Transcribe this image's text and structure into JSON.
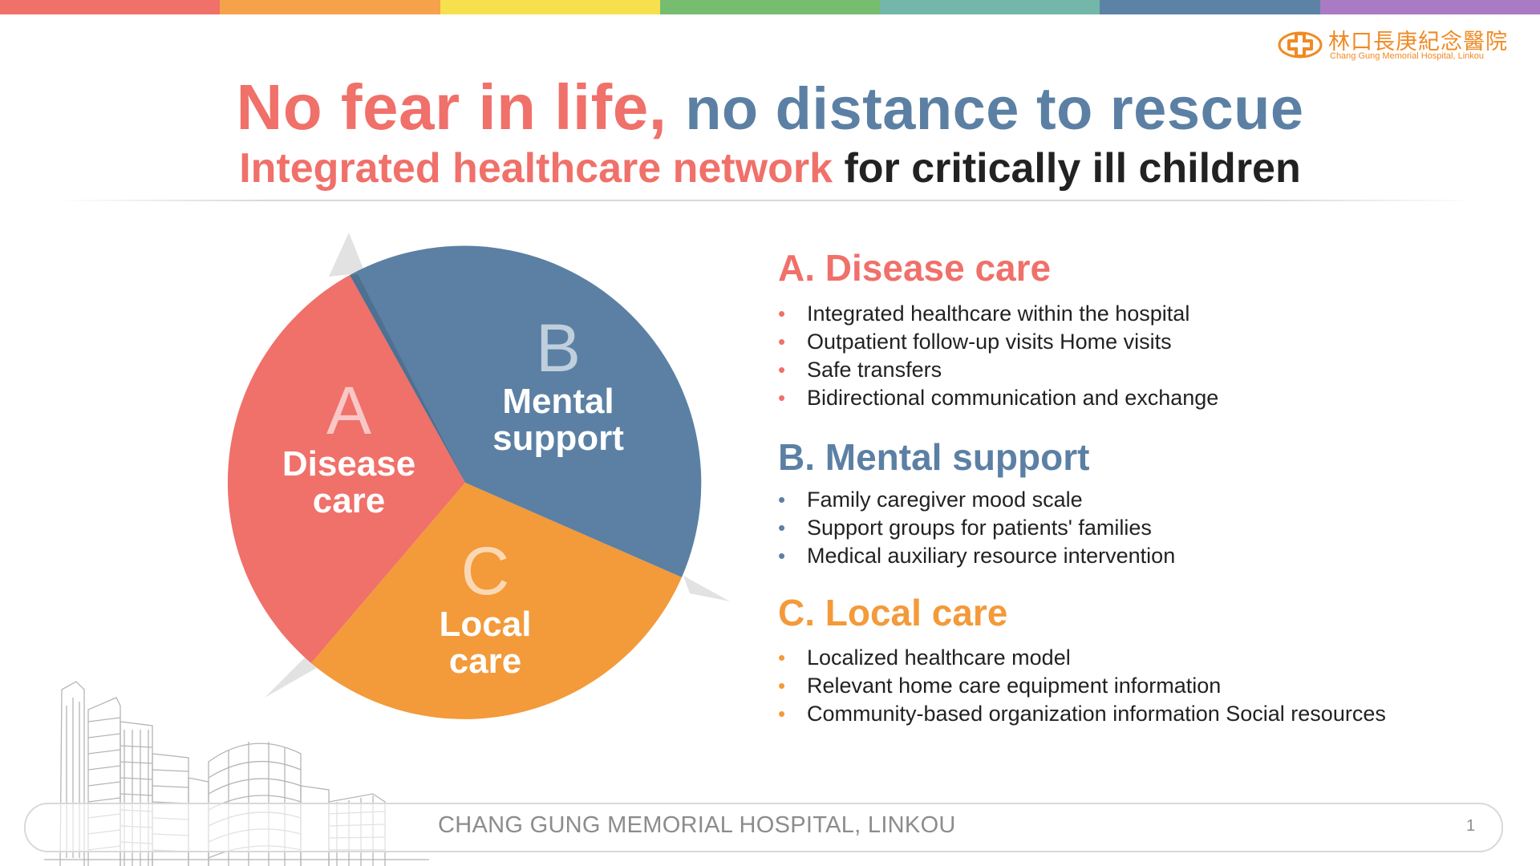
{
  "colors": {
    "topbar": [
      "#f0706a",
      "#f6a24a",
      "#f7e04e",
      "#76bd6f",
      "#73b7aa",
      "#5c83a6",
      "#a87bc4"
    ],
    "red": "#f0706a",
    "blue": "#5b80a4",
    "orange": "#f39a3a",
    "dark": "#222222"
  },
  "logo": {
    "chinese": "林口長庚紀念醫院",
    "english": "Chang Gung Memorial Hospital, Linkou",
    "icon": "hospital-cross-logo-icon"
  },
  "title": {
    "line1_part1": "No fear in life,",
    "line1_part2": "no distance to rescue",
    "line2_part1": "Integrated healthcare network",
    "line2_part2": "for critically ill children"
  },
  "pie": {
    "segments": [
      {
        "letter": "A",
        "label_line1": "Disease",
        "label_line2": "care",
        "color": "#f0706a"
      },
      {
        "letter": "B",
        "label_line1": "Mental",
        "label_line2": "support",
        "color": "#5b80a4"
      },
      {
        "letter": "C",
        "label_line1": "Local",
        "label_line2": "care",
        "color": "#f39a3a"
      }
    ]
  },
  "sections": [
    {
      "heading": "A. Disease care",
      "color": "#f0706a",
      "items": [
        "Integrated healthcare within the hospital",
        "Outpatient follow-up visits Home visits",
        "Safe transfers",
        "Bidirectional communication and exchange"
      ]
    },
    {
      "heading": "B. Mental support",
      "color": "#5b80a4",
      "items": [
        "Family caregiver mood scale",
        "Support groups for patients' families",
        "Medical auxiliary resource intervention"
      ]
    },
    {
      "heading": "C. Local care",
      "color": "#f39a3a",
      "items": [
        "Localized healthcare model",
        "Relevant home care equipment information",
        "Community-based organization information Social resources"
      ]
    }
  ],
  "bullet_char": "•",
  "footer": {
    "text": "CHANG GUNG MEMORIAL HOSPITAL, LINKOU",
    "page_number": "1"
  }
}
